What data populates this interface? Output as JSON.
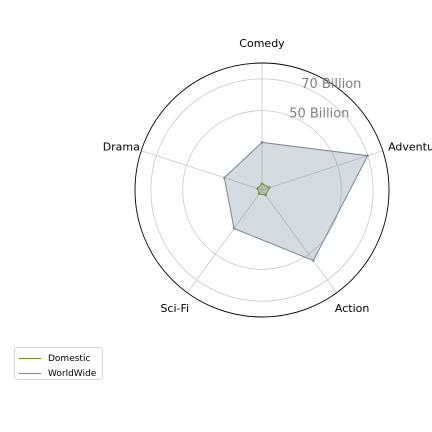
{
  "chart_data": {
    "type": "radar",
    "categories": [
      "Comedy",
      "Adventure",
      "Action",
      "Sci-Fi",
      "Drama"
    ],
    "rmax": 80,
    "ring_labels": [
      {
        "value": 50,
        "label": "50 Billion"
      },
      {
        "value": 70,
        "label": "70 Billion"
      }
    ],
    "grid_rings": [
      50,
      70
    ],
    "series": [
      {
        "name": "Domestic",
        "color": "#6b8e23",
        "fill": "#6b8e23",
        "values": [
          4,
          5,
          4,
          3,
          3
        ]
      },
      {
        "name": "WorldWide",
        "color": "#778899",
        "fill": "#778899",
        "values": [
          30,
          70,
          55,
          30,
          25
        ]
      }
    ],
    "legend_position": "bottom-left"
  }
}
